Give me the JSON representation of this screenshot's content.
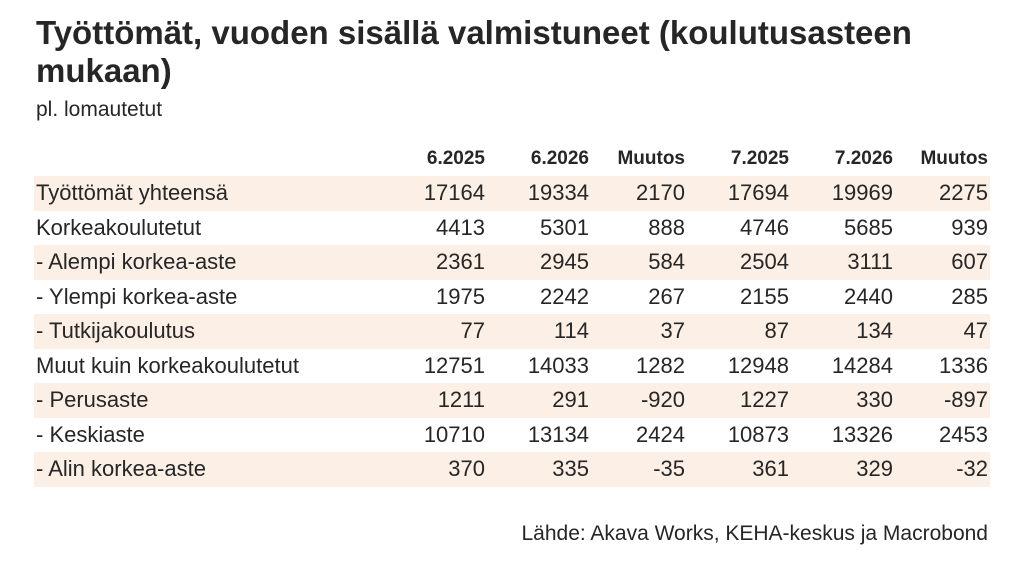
{
  "chart_data": {
    "type": "table",
    "title": "Työttömät, vuoden sisällä valmistuneet (koulutusasteen mukaan)",
    "subtitle": "pl. lomautetut",
    "columns": [
      "",
      "6.2025",
      "6.2026",
      "Muutos",
      "7.2025",
      "7.2026",
      "Muutos"
    ],
    "rows": [
      {
        "label": "Työttömät yhteensä",
        "values": [
          "17164",
          "19334",
          "2170",
          "17694",
          "19969",
          "2275"
        ]
      },
      {
        "label": "Korkeakoulutetut",
        "values": [
          "4413",
          "5301",
          "888",
          "4746",
          "5685",
          "939"
        ]
      },
      {
        "label": "- Alempi korkea-aste",
        "values": [
          "2361",
          "2945",
          "584",
          "2504",
          "3111",
          "607"
        ]
      },
      {
        "label": "- Ylempi korkea-aste",
        "values": [
          "1975",
          "2242",
          "267",
          "2155",
          "2440",
          "285"
        ]
      },
      {
        "label": "- Tutkijakoulutus",
        "values": [
          "77",
          "114",
          "37",
          "87",
          "134",
          "47"
        ]
      },
      {
        "label": "Muut kuin korkeakoulutetut",
        "values": [
          "12751",
          "14033",
          "1282",
          "12948",
          "14284",
          "1336"
        ]
      },
      {
        "label": "- Perusaste",
        "values": [
          "1211",
          "291",
          "-920",
          "1227",
          "330",
          "-897"
        ]
      },
      {
        "label": "- Keskiaste",
        "values": [
          "10710",
          "13134",
          "2424",
          "10873",
          "13326",
          "2453"
        ]
      },
      {
        "label": "- Alin korkea-aste",
        "values": [
          "370",
          "335",
          "-35",
          "361",
          "329",
          "-32"
        ]
      }
    ],
    "source": "Lähde: Akava Works, KEHA-keskus ja Macrobond"
  },
  "colors": {
    "row_shade": "#fcefe6",
    "text": "#262626",
    "background": "#ffffff"
  }
}
